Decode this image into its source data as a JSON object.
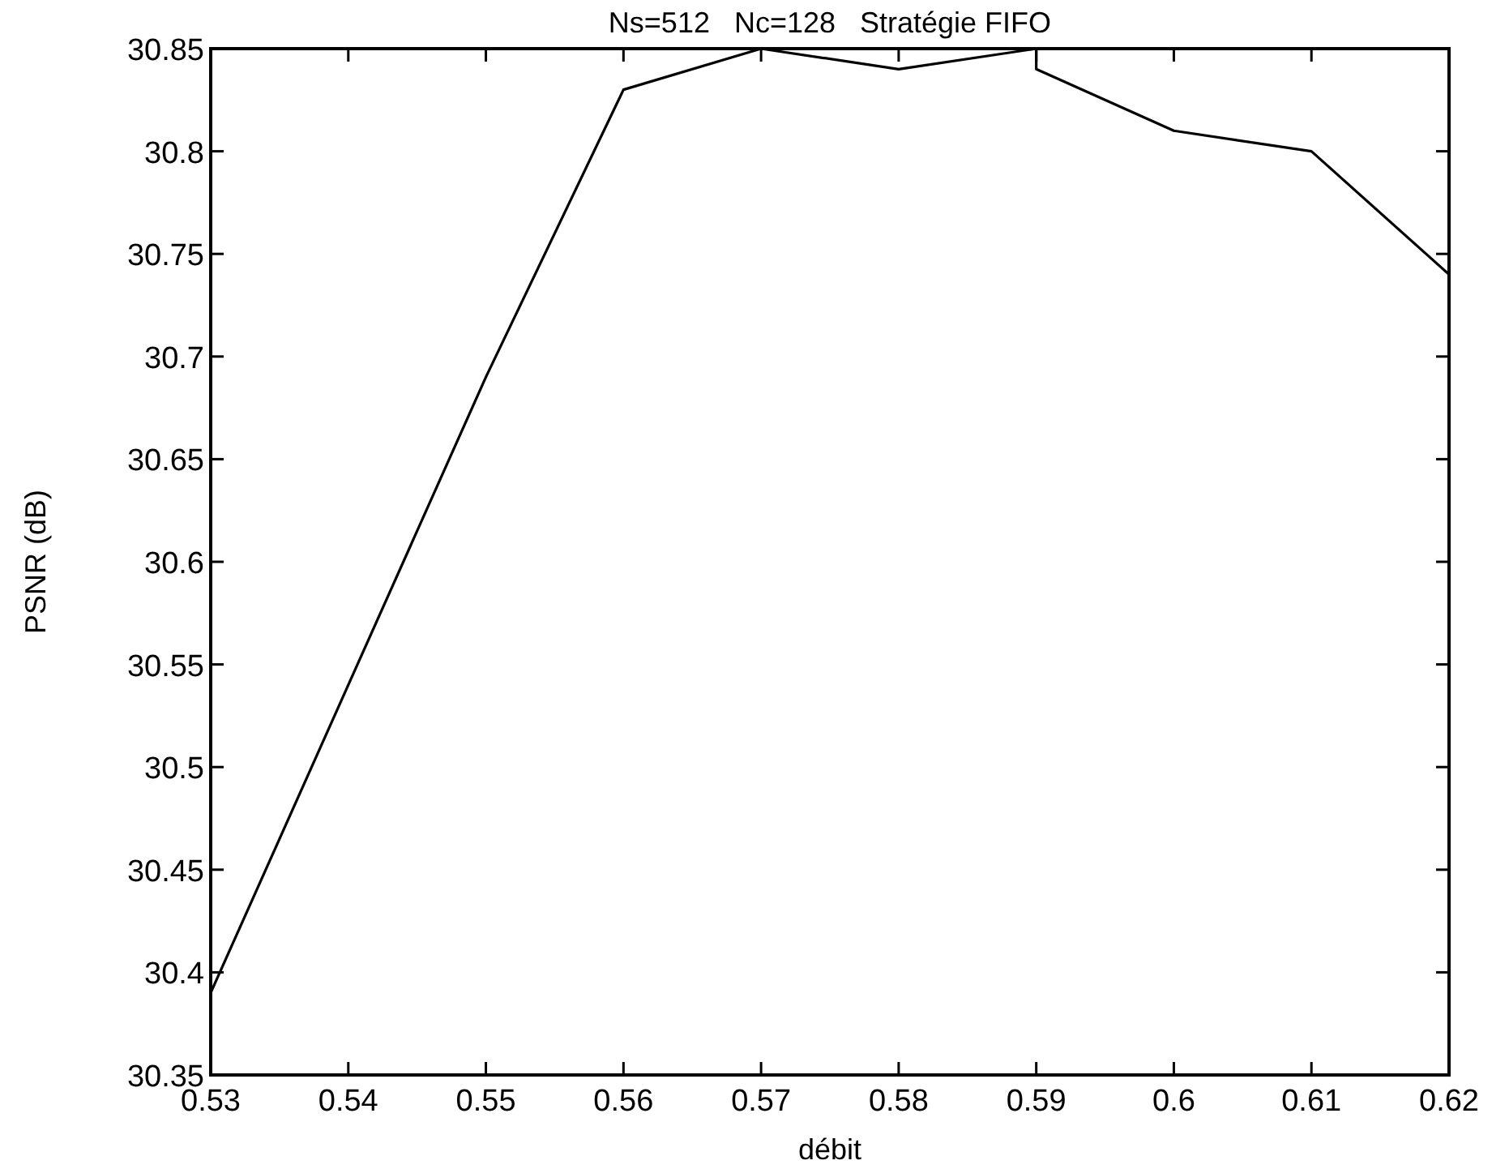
{
  "chart_data": {
    "type": "line",
    "title": "Ns=512   Nc=128   Stratégie FIFO",
    "xlabel": "débit",
    "ylabel": "PSNR (dB)",
    "x": [
      0.53,
      0.54,
      0.55,
      0.56,
      0.57,
      0.58,
      0.59,
      0.59,
      0.6,
      0.61,
      0.62
    ],
    "series": [
      {
        "color": "#000000",
        "values": [
          30.39,
          30.54,
          30.69,
          30.83,
          30.85,
          30.84,
          30.85,
          30.84,
          30.81,
          30.8,
          30.74
        ]
      }
    ],
    "xlim": [
      0.53,
      0.62
    ],
    "xticks": [
      0.53,
      0.54,
      0.55,
      0.56,
      0.57,
      0.58,
      0.59,
      0.6,
      0.61,
      0.62
    ],
    "ylim": [
      30.35,
      30.85
    ],
    "yticks": [
      30.35,
      30.4,
      30.45,
      30.5,
      30.55,
      30.6,
      30.65,
      30.7,
      30.75,
      30.8,
      30.85
    ],
    "grid": false,
    "marker": "none",
    "line_style": "solid"
  }
}
